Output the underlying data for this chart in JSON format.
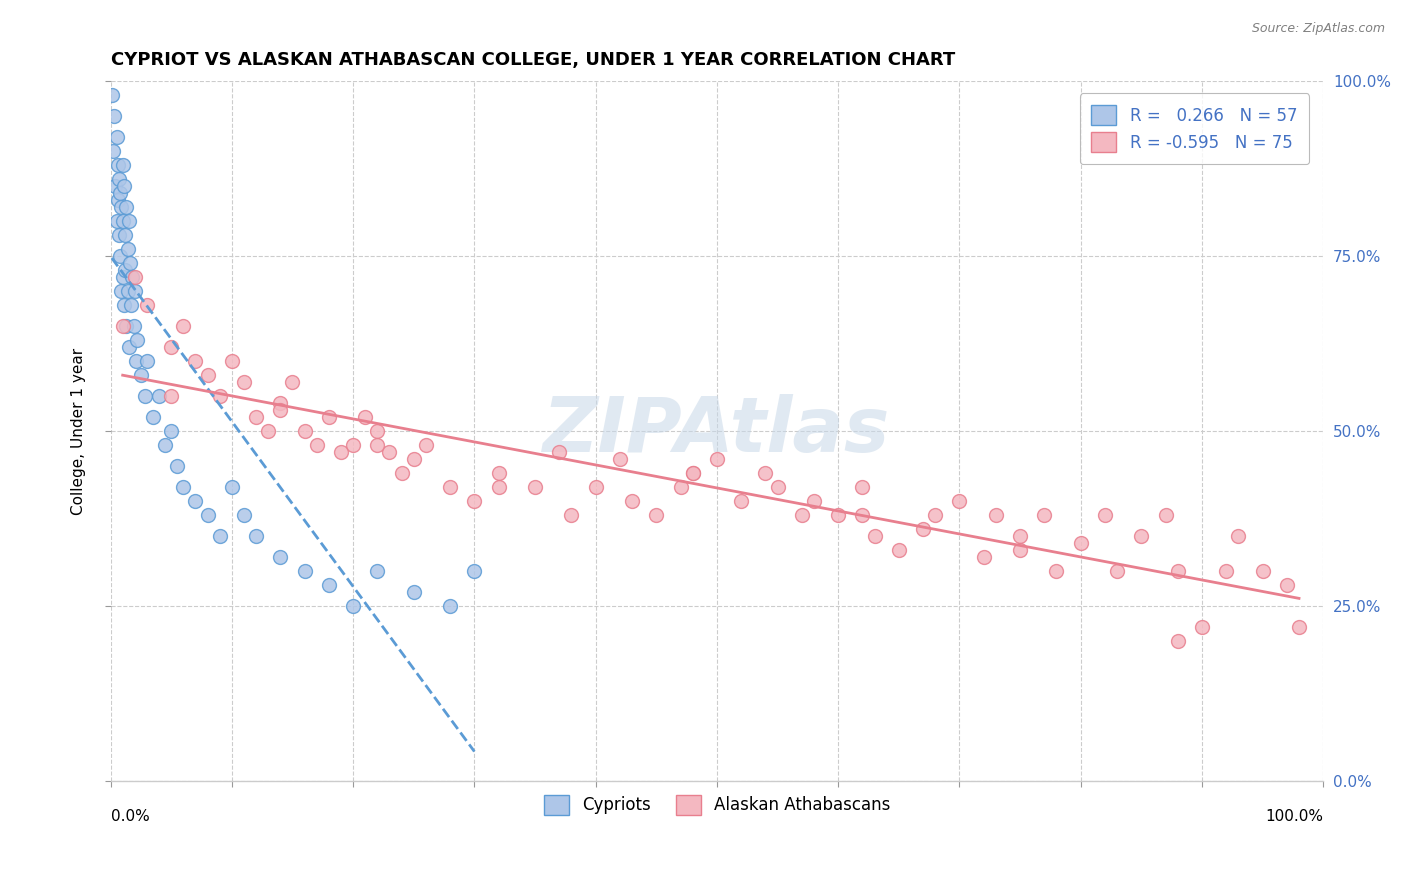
{
  "title": "CYPRIOT VS ALASKAN ATHABASCAN COLLEGE, UNDER 1 YEAR CORRELATION CHART",
  "source_text": "Source: ZipAtlas.com",
  "ylabel": "College, Under 1 year",
  "xlim": [
    0,
    100
  ],
  "ylim": [
    0,
    100
  ],
  "ytick_positions": [
    0,
    25,
    50,
    75,
    100
  ],
  "ytick_labels_right": [
    "0.0%",
    "25.0%",
    "50.0%",
    "75.0%",
    "100.0%"
  ],
  "xtick_positions": [
    0,
    10,
    20,
    30,
    40,
    50,
    60,
    70,
    80,
    90,
    100
  ],
  "grid_color": "#cccccc",
  "background_color": "#ffffff",
  "cypriot_color": "#aec6e8",
  "cypriot_edge_color": "#5b9bd5",
  "alaskan_color": "#f4b8c1",
  "alaskan_edge_color": "#e87f8e",
  "cypriot_R": 0.266,
  "cypriot_N": 57,
  "alaskan_R": -0.595,
  "alaskan_N": 75,
  "cypriot_trend_color": "#5b9bd5",
  "alaskan_trend_color": "#e87f8e",
  "watermark_color": "#c8d8e8",
  "legend_text_color": "#4472c4",
  "cypriot_x": [
    0.1,
    0.2,
    0.3,
    0.4,
    0.5,
    0.5,
    0.6,
    0.6,
    0.7,
    0.7,
    0.8,
    0.8,
    0.9,
    0.9,
    1.0,
    1.0,
    1.0,
    1.1,
    1.1,
    1.2,
    1.2,
    1.3,
    1.3,
    1.4,
    1.4,
    1.5,
    1.5,
    1.6,
    1.7,
    1.8,
    1.9,
    2.0,
    2.1,
    2.2,
    2.5,
    2.8,
    3.0,
    3.5,
    4.0,
    4.5,
    5.0,
    5.5,
    6.0,
    7.0,
    8.0,
    9.0,
    10.0,
    11.0,
    12.0,
    14.0,
    16.0,
    18.0,
    20.0,
    22.0,
    25.0,
    28.0,
    30.0
  ],
  "cypriot_y": [
    98,
    90,
    95,
    85,
    92,
    80,
    88,
    83,
    86,
    78,
    84,
    75,
    82,
    70,
    88,
    80,
    72,
    85,
    68,
    78,
    73,
    82,
    65,
    76,
    70,
    80,
    62,
    74,
    68,
    72,
    65,
    70,
    60,
    63,
    58,
    55,
    60,
    52,
    55,
    48,
    50,
    45,
    42,
    40,
    38,
    35,
    42,
    38,
    35,
    32,
    30,
    28,
    25,
    30,
    27,
    25,
    30
  ],
  "alaskan_x": [
    1.0,
    2.0,
    3.0,
    5.0,
    6.0,
    7.0,
    8.0,
    9.0,
    10.0,
    11.0,
    12.0,
    13.0,
    14.0,
    15.0,
    16.0,
    17.0,
    18.0,
    19.0,
    20.0,
    21.0,
    22.0,
    23.0,
    24.0,
    25.0,
    26.0,
    28.0,
    30.0,
    32.0,
    35.0,
    37.0,
    38.0,
    40.0,
    42.0,
    43.0,
    45.0,
    47.0,
    48.0,
    50.0,
    52.0,
    54.0,
    55.0,
    57.0,
    58.0,
    60.0,
    62.0,
    63.0,
    65.0,
    67.0,
    68.0,
    70.0,
    72.0,
    73.0,
    75.0,
    77.0,
    78.0,
    80.0,
    82.0,
    83.0,
    85.0,
    87.0,
    88.0,
    90.0,
    92.0,
    93.0,
    95.0,
    97.0,
    98.0,
    5.0,
    14.0,
    22.0,
    32.0,
    48.0,
    62.0,
    75.0,
    88.0
  ],
  "alaskan_y": [
    65,
    72,
    68,
    62,
    65,
    60,
    58,
    55,
    60,
    57,
    52,
    50,
    54,
    57,
    50,
    48,
    52,
    47,
    48,
    52,
    50,
    47,
    44,
    46,
    48,
    42,
    40,
    44,
    42,
    47,
    38,
    42,
    46,
    40,
    38,
    42,
    44,
    46,
    40,
    44,
    42,
    38,
    40,
    38,
    42,
    35,
    33,
    36,
    38,
    40,
    32,
    38,
    35,
    38,
    30,
    34,
    38,
    30,
    35,
    38,
    30,
    22,
    30,
    35,
    30,
    28,
    22,
    55,
    53,
    48,
    42,
    44,
    38,
    33,
    20
  ]
}
